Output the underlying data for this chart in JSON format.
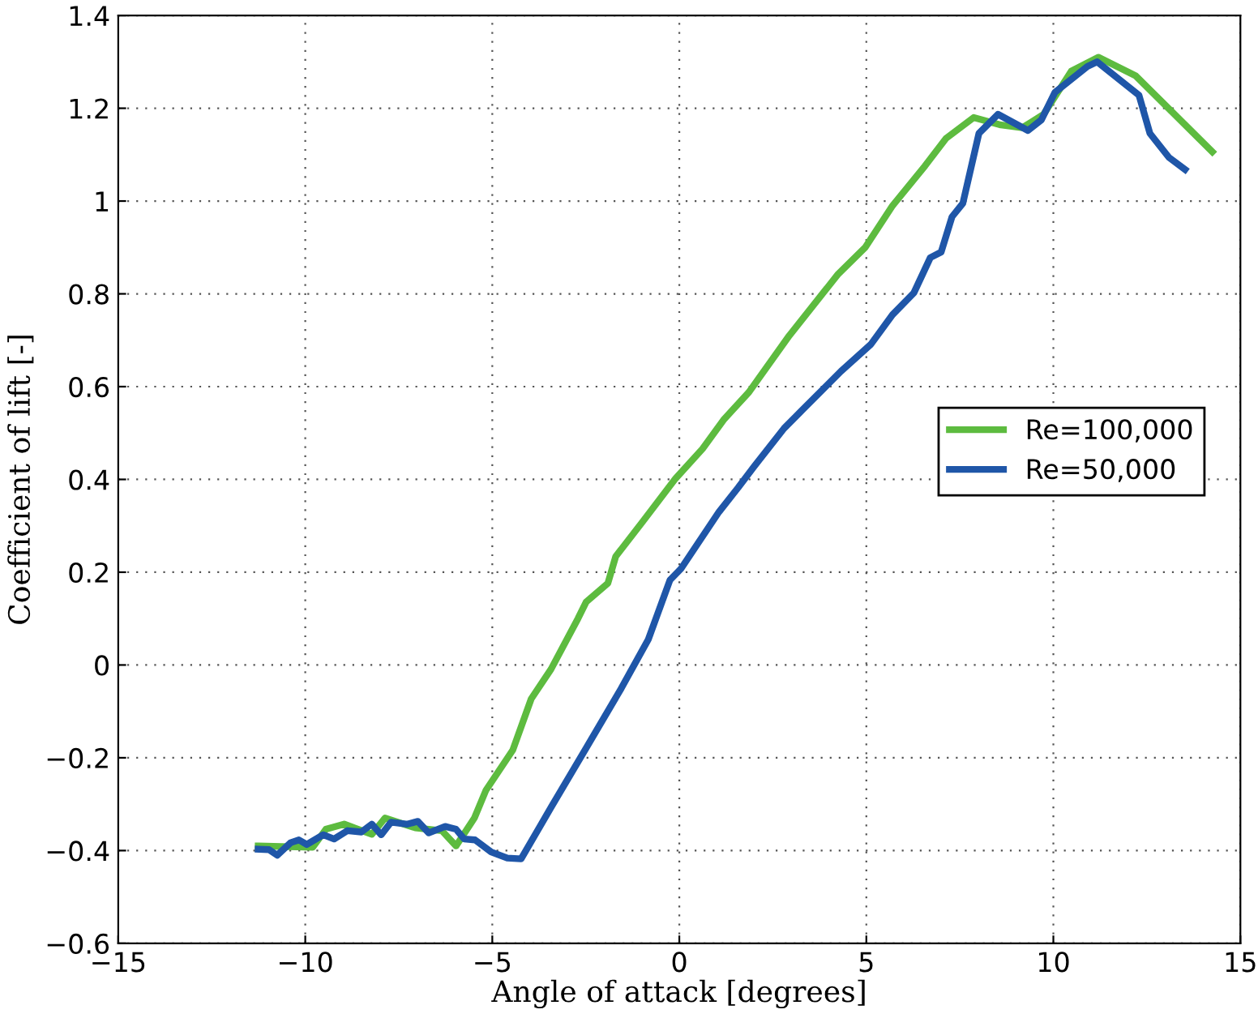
{
  "chart_data": {
    "type": "line",
    "xlabel": "Angle of attack [degrees]",
    "ylabel": "Coefficient of lift [-]",
    "xlim": [
      -15,
      15
    ],
    "ylim": [
      -0.6,
      1.4
    ],
    "xticks": [
      {
        "value": -15,
        "label": "−15"
      },
      {
        "value": -10,
        "label": "−10"
      },
      {
        "value": -5,
        "label": "−5"
      },
      0,
      5,
      10,
      15
    ],
    "yticks": [
      {
        "value": -0.6,
        "label": "−0.6"
      },
      {
        "value": -0.4,
        "label": "−0.4"
      },
      {
        "value": -0.2,
        "label": "−0.2"
      },
      0,
      0.2,
      0.4,
      0.6,
      0.8,
      1,
      1.2,
      1.4
    ],
    "grid": true,
    "legend": "right",
    "line_style": "solid",
    "marker": "none",
    "series": [
      {
        "name": "Re=100,000",
        "color": "#5dbb3f",
        "x": [
          -11.26,
          -9.8,
          -9.45,
          -8.96,
          -8.22,
          -7.87,
          -7.06,
          -6.35,
          -5.97,
          -5.48,
          -5.17,
          -4.45,
          -3.96,
          -3.43,
          -2.71,
          -2.49,
          -1.91,
          -1.7,
          -0.97,
          -0.1,
          0.62,
          1.2,
          1.86,
          2.94,
          4.25,
          4.97,
          5.7,
          6.57,
          7.13,
          7.87,
          8.6,
          9.17,
          9.74,
          10.48,
          11.2,
          12.2,
          13.2,
          14.25
        ],
        "values": [
          -0.39,
          -0.393,
          -0.354,
          -0.343,
          -0.365,
          -0.33,
          -0.351,
          -0.357,
          -0.39,
          -0.33,
          -0.27,
          -0.183,
          -0.073,
          -0.009,
          0.1,
          0.136,
          0.176,
          0.234,
          0.31,
          0.402,
          0.466,
          0.53,
          0.588,
          0.71,
          0.843,
          0.9,
          0.99,
          1.076,
          1.135,
          1.18,
          1.164,
          1.158,
          1.187,
          1.28,
          1.31,
          1.27,
          1.19,
          1.106
        ]
      },
      {
        "name": "Re=50,000",
        "color": "#1f56a8",
        "x": [
          -11.26,
          -10.97,
          -10.75,
          -10.39,
          -10.17,
          -9.96,
          -9.52,
          -9.23,
          -8.87,
          -8.5,
          -8.22,
          -7.97,
          -7.71,
          -7.27,
          -6.99,
          -6.7,
          -6.26,
          -5.97,
          -5.75,
          -5.46,
          -5.03,
          -4.6,
          -4.23,
          -3.43,
          -2.49,
          -1.55,
          -0.83,
          -0.25,
          0.04,
          1.06,
          1.57,
          2.0,
          2.8,
          3.23,
          4.32,
          5.12,
          5.7,
          6.27,
          6.71,
          7.0,
          7.29,
          7.58,
          8.01,
          8.52,
          9.32,
          9.68,
          10.04,
          10.91,
          11.17,
          12.29,
          12.58,
          13.09,
          13.52
        ],
        "values": [
          -0.397,
          -0.398,
          -0.41,
          -0.383,
          -0.377,
          -0.387,
          -0.366,
          -0.375,
          -0.357,
          -0.36,
          -0.343,
          -0.366,
          -0.339,
          -0.343,
          -0.337,
          -0.362,
          -0.348,
          -0.354,
          -0.375,
          -0.377,
          -0.403,
          -0.416,
          -0.418,
          -0.307,
          -0.179,
          -0.05,
          0.055,
          0.183,
          0.207,
          0.33,
          0.382,
          0.428,
          0.51,
          0.545,
          0.633,
          0.691,
          0.755,
          0.802,
          0.878,
          0.89,
          0.966,
          0.995,
          1.146,
          1.187,
          1.152,
          1.175,
          1.234,
          1.29,
          1.3,
          1.228,
          1.146,
          1.094,
          1.068
        ]
      }
    ]
  }
}
